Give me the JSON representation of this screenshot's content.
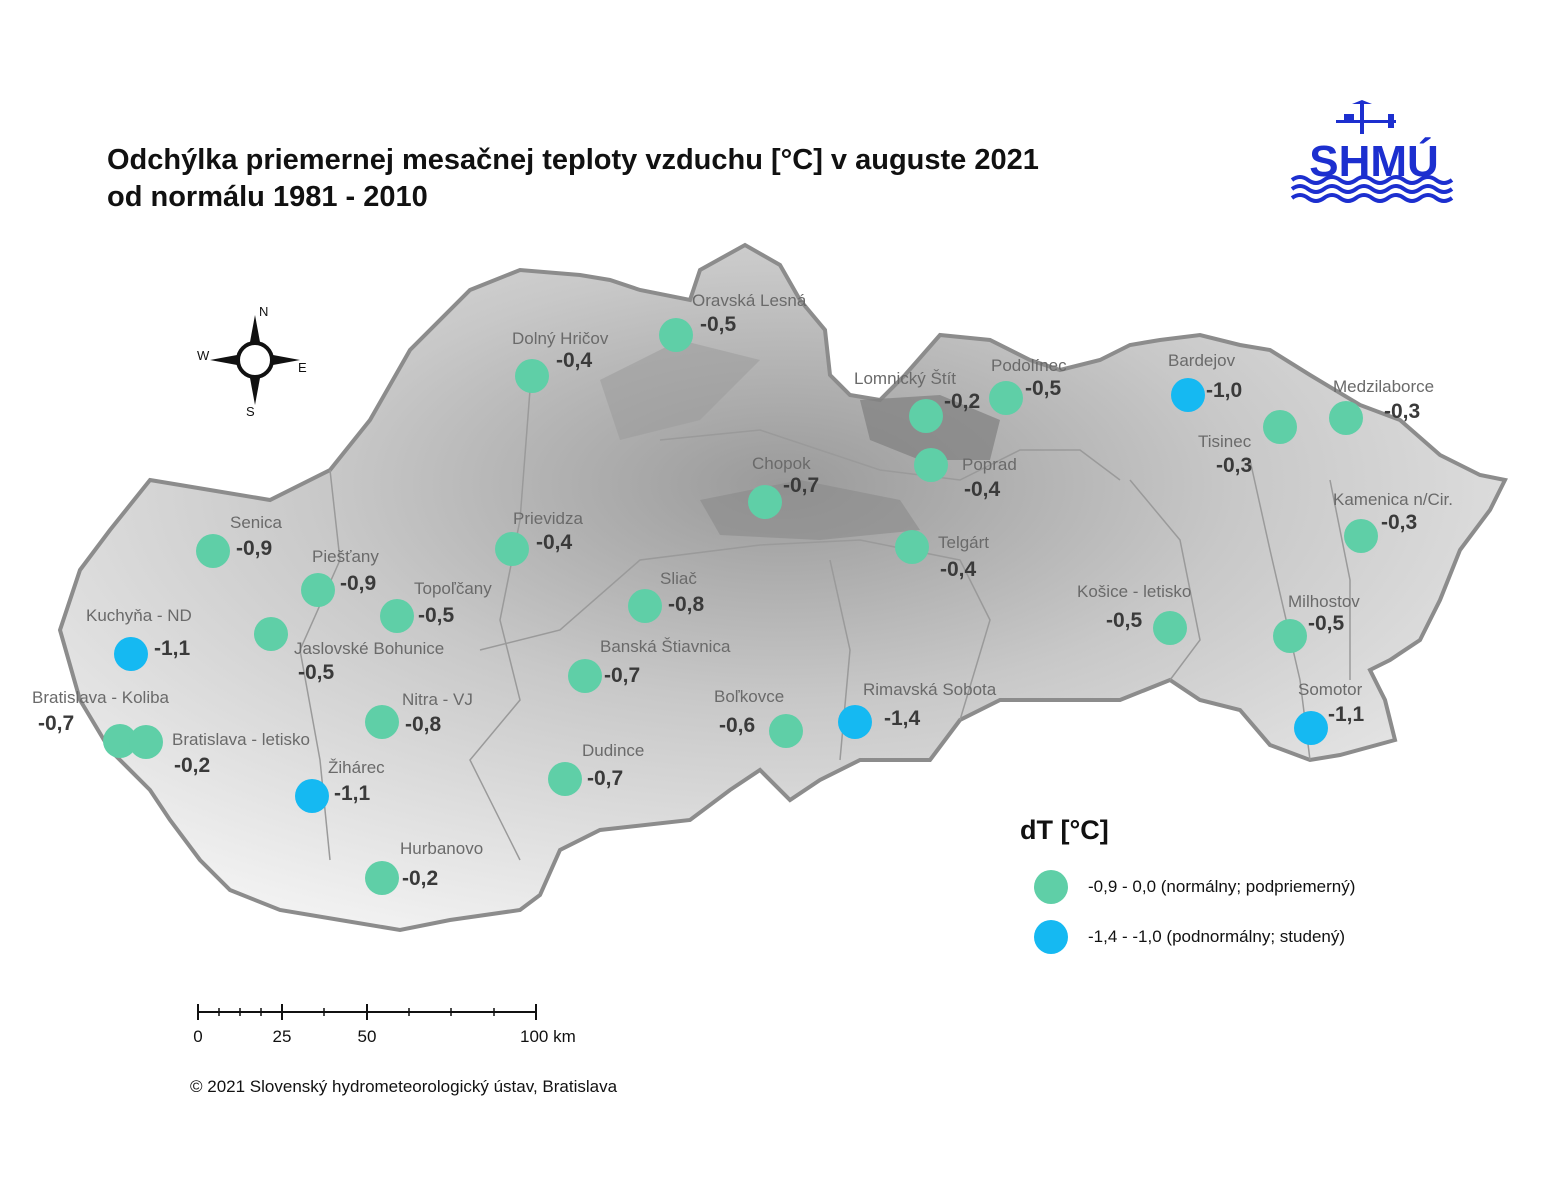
{
  "title": {
    "line1": "Odchýlka priemernej mesačnej teploty vzduchu [°C] v auguste 2021",
    "line2": "od normálu 1981 - 2010"
  },
  "logo": {
    "text": "SHMÚ",
    "color": "#1c2fcf"
  },
  "compass": {
    "north": "N",
    "south": "S",
    "west": "W",
    "east": "E"
  },
  "colors": {
    "normal": "#5fcfa7",
    "cold": "#15b9f2"
  },
  "legend": {
    "title": "dT [°C]",
    "items": [
      {
        "class": "normal",
        "label": "-0,9 - 0,0 (normálny; podpriemerný)"
      },
      {
        "class": "cold",
        "label": "-1,4 - -1,0 (podnormálny; studený)"
      }
    ]
  },
  "scale": {
    "labels": [
      "0",
      "25",
      "50",
      "100 km"
    ]
  },
  "copyright": "© 2021 Slovenský hydrometeorologický ústav, Bratislava",
  "stations": [
    {
      "name": "Oravská Lesná",
      "value": "-0,5",
      "class": "normal"
    },
    {
      "name": "Dolný Hričov",
      "value": "-0,4",
      "class": "normal"
    },
    {
      "name": "Lomnický Štít",
      "value": "-0,2",
      "class": "normal"
    },
    {
      "name": "Podolínec",
      "value": "-0,5",
      "class": "normal"
    },
    {
      "name": "Bardejov",
      "value": "-1,0",
      "class": "cold"
    },
    {
      "name": "Medzilaborce",
      "value": "-0,3",
      "class": "normal"
    },
    {
      "name": "Tisinec",
      "value": "-0,3",
      "class": "normal"
    },
    {
      "name": "Poprad",
      "value": "-0,4",
      "class": "normal"
    },
    {
      "name": "Chopok",
      "value": "-0,7",
      "class": "normal"
    },
    {
      "name": "Kamenica n/Cir.",
      "value": "-0,3",
      "class": "normal"
    },
    {
      "name": "Senica",
      "value": "-0,9",
      "class": "normal"
    },
    {
      "name": "Prievidza",
      "value": "-0,4",
      "class": "normal"
    },
    {
      "name": "Telgárt",
      "value": "-0,4",
      "class": "normal"
    },
    {
      "name": "Piešťany",
      "value": "-0,9",
      "class": "normal"
    },
    {
      "name": "Topoľčany",
      "value": "-0,5",
      "class": "normal"
    },
    {
      "name": "Sliač",
      "value": "-0,8",
      "class": "normal"
    },
    {
      "name": "Kuchyňa - ND",
      "value": "-1,1",
      "class": "cold"
    },
    {
      "name": "Jaslovské Bohunice",
      "value": "-0,5",
      "class": "normal"
    },
    {
      "name": "Košice - letisko",
      "value": "-0,5",
      "class": "normal"
    },
    {
      "name": "Milhostov",
      "value": "-0,5",
      "class": "normal"
    },
    {
      "name": "Banská Štiavnica",
      "value": "-0,7",
      "class": "normal"
    },
    {
      "name": "Bratislava - Koliba",
      "value": "-0,7",
      "class": "normal"
    },
    {
      "name": "Nitra - VJ",
      "value": "-0,8",
      "class": "normal"
    },
    {
      "name": "Boľkovce",
      "value": "-0,6",
      "class": "normal"
    },
    {
      "name": "Rimavská Sobota",
      "value": "-1,4",
      "class": "cold"
    },
    {
      "name": "Somotor",
      "value": "-1,1",
      "class": "cold"
    },
    {
      "name": "Bratislava - letisko",
      "value": "-0,2",
      "class": "normal"
    },
    {
      "name": "Žihárec",
      "value": "-1,1",
      "class": "cold"
    },
    {
      "name": "Dudince",
      "value": "-0,7",
      "class": "normal"
    },
    {
      "name": "Hurbanovo",
      "value": "-0,2",
      "class": "normal"
    }
  ]
}
